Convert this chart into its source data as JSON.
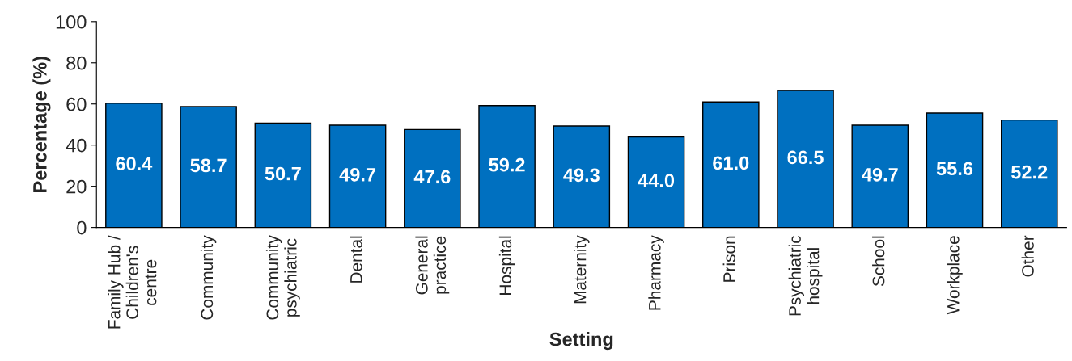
{
  "chart_data": {
    "type": "bar",
    "categories": [
      "Family Hub /\nChildren's\ncentre",
      "Community",
      "Community\npsychiatric",
      "Dental",
      "General\npractice",
      "Hospital",
      "Maternity",
      "Pharmacy",
      "Prison",
      "Psychiatric\nhospital",
      "School",
      "Workplace",
      "Other"
    ],
    "values": [
      60.4,
      58.7,
      50.7,
      49.7,
      47.6,
      59.2,
      49.3,
      44.0,
      61.0,
      66.5,
      49.7,
      55.6,
      52.2
    ],
    "value_labels": [
      "60.4",
      "58.7",
      "50.7",
      "49.7",
      "47.6",
      "59.2",
      "49.3",
      "44.0",
      "61.0",
      "66.5",
      "49.7",
      "55.6",
      "52.2"
    ],
    "color": "#0070c0",
    "xlabel": "Setting",
    "ylabel": "Percentage (%)",
    "ylim": [
      0,
      100
    ],
    "yticks": [
      0,
      20,
      40,
      60,
      80,
      100
    ],
    "grid": false
  }
}
